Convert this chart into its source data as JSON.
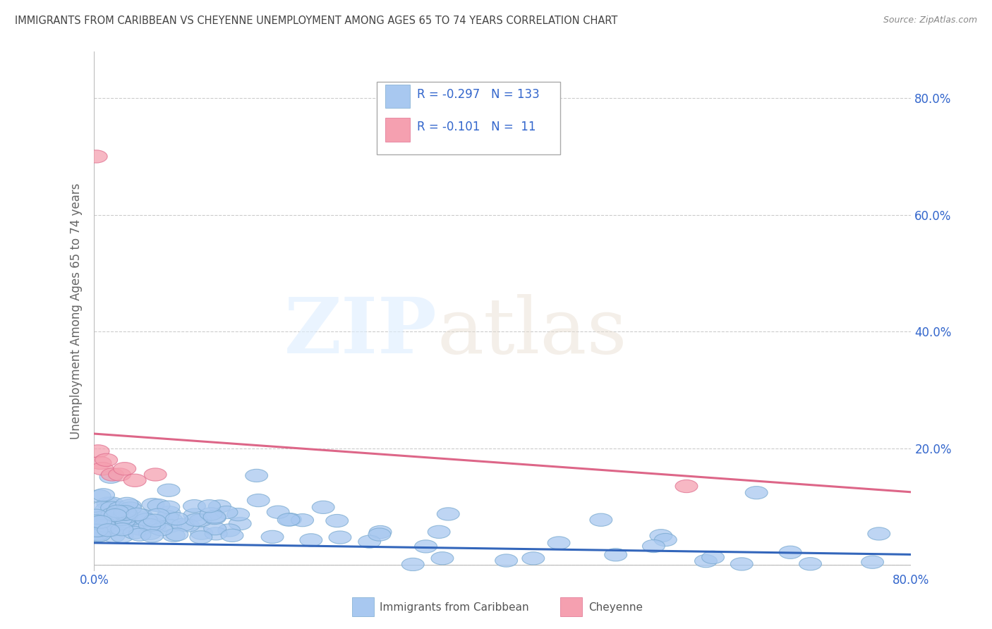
{
  "title": "IMMIGRANTS FROM CARIBBEAN VS CHEYENNE UNEMPLOYMENT AMONG AGES 65 TO 74 YEARS CORRELATION CHART",
  "source": "Source: ZipAtlas.com",
  "ylabel": "Unemployment Among Ages 65 to 74 years",
  "xlim": [
    0.0,
    0.8
  ],
  "ylim": [
    -0.01,
    0.88
  ],
  "xticks": [
    0.0,
    0.1,
    0.2,
    0.3,
    0.4,
    0.5,
    0.6,
    0.7,
    0.8
  ],
  "xticklabels": [
    "0.0%",
    "",
    "",
    "",
    "",
    "",
    "",
    "",
    "80.0%"
  ],
  "yticks": [
    0.0,
    0.2,
    0.4,
    0.6,
    0.8
  ],
  "yticklabels": [
    "",
    "20.0%",
    "40.0%",
    "60.0%",
    "80.0%"
  ],
  "blue_R": -0.297,
  "blue_N": 133,
  "pink_R": -0.101,
  "pink_N": 11,
  "blue_color": "#a8c8f0",
  "pink_color": "#f5a0b0",
  "blue_edge_color": "#7aaad0",
  "pink_edge_color": "#e07090",
  "blue_line_color": "#3366bb",
  "pink_line_color": "#dd6688",
  "legend_text_color": "#3366cc",
  "background_color": "#ffffff",
  "grid_color": "#cccccc",
  "title_color": "#555555",
  "blue_trend_y0": 0.038,
  "blue_trend_y1": 0.018,
  "pink_trend_y0": 0.225,
  "pink_trend_y1": 0.125
}
